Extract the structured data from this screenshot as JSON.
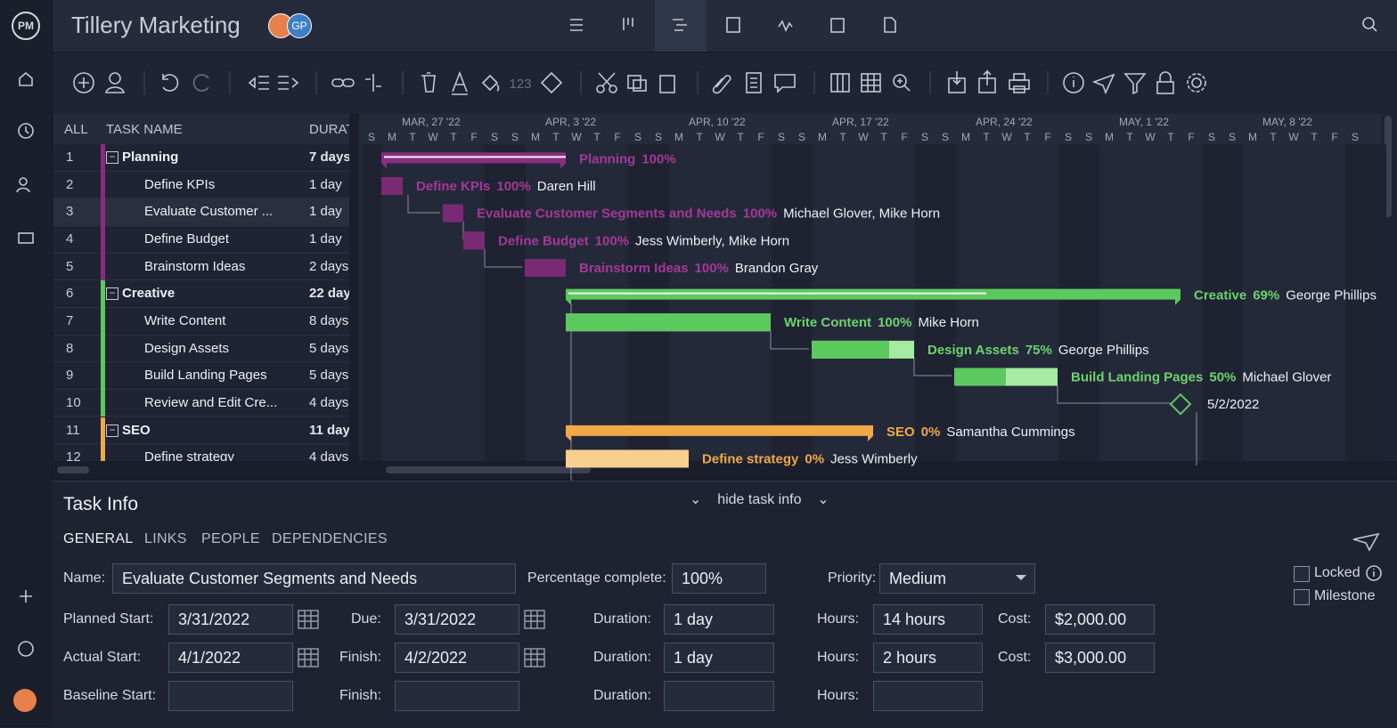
{
  "app": {
    "logo": "PM",
    "project_title": "Tillery Marketing",
    "avatar_initials": "GP"
  },
  "toolbar": {
    "number_format": "123"
  },
  "grid": {
    "headers": [
      "ALL",
      "TASK NAME",
      "DURAT"
    ],
    "rows": [
      {
        "id": 1,
        "name": "Planning",
        "duration": "7 days",
        "summary": true,
        "percent": "100%"
      },
      {
        "id": 2,
        "name": "Define KPIs",
        "duration": "1 day",
        "percent": "100%",
        "assignee": "Daren Hill"
      },
      {
        "id": 3,
        "name": "Evaluate Customer ...",
        "full_name": "Evaluate Customer Segments and Needs",
        "duration": "1 day",
        "percent": "100%",
        "assignee": "Michael Glover, Mike Horn"
      },
      {
        "id": 4,
        "name": "Define Budget",
        "duration": "1 day",
        "percent": "100%",
        "assignee": "Jess Wimberly, Mike Horn"
      },
      {
        "id": 5,
        "name": "Brainstorm Ideas",
        "duration": "2 days",
        "percent": "100%",
        "assignee": "Brandon Gray"
      },
      {
        "id": 6,
        "name": "Creative",
        "duration": "22 day",
        "summary": true,
        "percent": "69%",
        "assignee": "George Phillips"
      },
      {
        "id": 7,
        "name": "Write Content",
        "duration": "8 days",
        "percent": "100%",
        "assignee": "Mike Horn"
      },
      {
        "id": 8,
        "name": "Design Assets",
        "duration": "5 days",
        "percent": "75%",
        "assignee": "George Phillips"
      },
      {
        "id": 9,
        "name": "Build Landing Pages",
        "duration": "5 days",
        "percent": "50%",
        "assignee": "Michael Glover"
      },
      {
        "id": 10,
        "name": "Review and Edit Cre...",
        "duration": "4 days",
        "date": "5/2/2022"
      },
      {
        "id": 11,
        "name": "SEO",
        "duration": "11 day",
        "summary": true,
        "percent": "0%",
        "assignee": "Samantha Cummings"
      },
      {
        "id": 12,
        "name": "Define strategy",
        "duration": "4 days",
        "percent": "0%",
        "assignee": "Jess Wimberly"
      }
    ]
  },
  "timeline": {
    "weeks": [
      "MAR, 27 '22",
      "APR, 3 '22",
      "APR, 10 '22",
      "APR, 17 '22",
      "APR, 24 '22",
      "MAY, 1 '22",
      "MAY, 8 '22"
    ],
    "days": [
      "S",
      "M",
      "T",
      "W",
      "T",
      "F",
      "S"
    ]
  },
  "task_info": {
    "title": "Task Info",
    "toggle": "hide task info",
    "tabs": [
      "GENERAL",
      "LINKS",
      "PEOPLE",
      "DEPENDENCIES"
    ],
    "name_label": "Name:",
    "name": "Evaluate Customer Segments and Needs",
    "percent_label": "Percentage complete:",
    "percent": "100%",
    "priority_label": "Priority:",
    "priority": "Medium",
    "planned_start_label": "Planned Start:",
    "planned_start": "3/31/2022",
    "due_label": "Due:",
    "due": "3/31/2022",
    "planned_duration_label": "Duration:",
    "planned_duration": "1 day",
    "planned_hours_label": "Hours:",
    "planned_hours": "14 hours",
    "planned_cost_label": "Cost:",
    "planned_cost": "$2,000.00",
    "actual_start_label": "Actual Start:",
    "actual_start": "4/1/2022",
    "finish_label": "Finish:",
    "finish": "4/2/2022",
    "actual_duration_label": "Duration:",
    "actual_duration": "1 day",
    "actual_hours_label": "Hours:",
    "actual_hours": "2 hours",
    "actual_cost_label": "Cost:",
    "actual_cost": "$3,000.00",
    "baseline_start_label": "Baseline Start:",
    "baseline_finish_label": "Finish:",
    "baseline_duration_label": "Duration:",
    "baseline_hours_label": "Hours:",
    "locked": "Locked",
    "milestone": "Milestone"
  }
}
